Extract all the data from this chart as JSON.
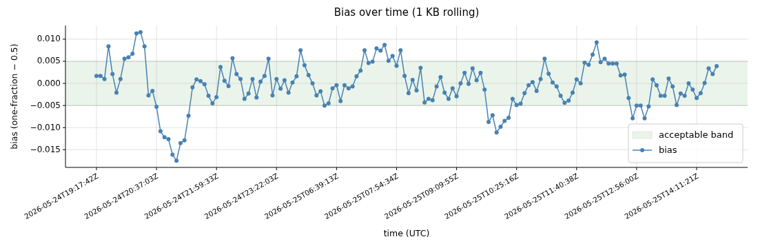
{
  "chart_data": {
    "type": "line",
    "title": "Bias over time (1 KB rolling)",
    "xlabel": "time (UTC)",
    "ylabel": "bias (one-fraction − 0.5)",
    "categories": [
      "2026-05-24T19:17:42Z",
      null,
      null,
      null,
      null,
      null,
      null,
      null,
      null,
      null,
      null,
      null,
      null,
      null,
      null,
      "2026-05-24T20:37:03Z",
      null,
      null,
      null,
      null,
      null,
      null,
      null,
      null,
      null,
      null,
      null,
      null,
      null,
      null,
      "2026-05-24T21:59:33Z",
      null,
      null,
      null,
      null,
      null,
      null,
      null,
      null,
      null,
      null,
      null,
      null,
      null,
      null,
      "2026-05-24T23:22:03Z",
      null,
      null,
      null,
      null,
      null,
      null,
      null,
      null,
      null,
      null,
      null,
      null,
      null,
      null,
      "2026-05-25T06:39:13Z",
      null,
      null,
      null,
      null,
      null,
      null,
      null,
      null,
      null,
      null,
      null,
      null,
      null,
      null,
      "2026-05-25T07:54:34Z",
      null,
      null,
      null,
      null,
      null,
      null,
      null,
      null,
      null,
      null,
      null,
      null,
      null,
      null,
      "2026-05-25T09:09:55Z",
      null,
      null,
      null,
      null,
      null,
      null,
      null,
      null,
      null,
      null,
      null,
      null,
      null,
      null,
      "2026-05-25T10:25:16Z",
      null,
      null,
      null,
      null,
      null,
      null,
      null,
      null,
      null,
      null,
      null,
      null,
      null,
      null,
      "2026-05-25T11:40:38Z",
      null,
      null,
      null,
      null,
      null,
      null,
      null,
      null,
      null,
      null,
      null,
      null,
      null,
      null,
      "2026-05-25T12:56:00Z",
      null,
      null,
      null,
      null,
      null,
      null,
      null,
      null,
      null,
      null,
      null,
      null,
      null,
      null,
      "2026-05-25T14:11:21Z",
      null,
      null,
      null,
      null,
      null
    ],
    "series": [
      {
        "name": "bias",
        "color": "#4682b4",
        "values": [
          0.0017,
          0.0017,
          0.001,
          0.0084,
          0.0021,
          -0.0021,
          0.001,
          0.0056,
          0.0059,
          0.0067,
          0.0113,
          0.0116,
          0.0084,
          -0.0027,
          -0.0017,
          -0.0053,
          -0.0108,
          -0.0122,
          -0.0126,
          -0.0161,
          -0.0175,
          -0.0135,
          -0.0129,
          -0.0073,
          -0.0009,
          0.0009,
          0.0005,
          -0.0002,
          -0.0028,
          -0.0045,
          -0.0031,
          0.0037,
          0.0006,
          -0.0006,
          0.0057,
          0.0021,
          0.001,
          -0.0035,
          -0.0023,
          0.001,
          -0.0032,
          0.0004,
          0.0017,
          0.0056,
          -0.0027,
          0.001,
          -0.0012,
          0.0007,
          -0.0021,
          0.0002,
          0.0016,
          0.0075,
          0.0041,
          0.0019,
          0.0,
          -0.0027,
          -0.0018,
          -0.005,
          -0.0045,
          -0.0011,
          -0.0004,
          -0.004,
          -0.0004,
          -0.0011,
          -0.0007,
          0.0016,
          0.0029,
          0.0075,
          0.0046,
          0.0049,
          0.0079,
          0.0074,
          0.0087,
          0.0051,
          0.0062,
          0.004,
          0.0075,
          0.0017,
          -0.0022,
          0.0008,
          -0.0016,
          0.0035,
          -0.0043,
          -0.0035,
          -0.0038,
          -0.0007,
          0.0014,
          -0.0021,
          -0.0035,
          -0.0011,
          -0.0029,
          0.0,
          0.0024,
          -0.0001,
          0.0034,
          0.0007,
          0.0024,
          -0.0014,
          -0.0087,
          -0.0072,
          -0.0111,
          -0.0098,
          -0.0085,
          -0.0078,
          -0.0035,
          -0.0049,
          -0.0046,
          -0.0022,
          -0.0004,
          0.0003,
          -0.0017,
          0.001,
          0.0056,
          0.0022,
          0.0002,
          -0.0007,
          -0.0028,
          -0.0044,
          -0.0039,
          -0.0021,
          0.0009,
          0.0,
          0.0047,
          0.0042,
          0.0065,
          0.0093,
          0.0048,
          0.0056,
          0.0045,
          0.0045,
          0.0045,
          0.0018,
          0.002,
          -0.0033,
          -0.0079,
          -0.005,
          -0.005,
          -0.0079,
          -0.0052,
          0.0009,
          -0.0004,
          -0.0028,
          -0.0028,
          0.0011,
          -0.0007,
          -0.0049,
          -0.0023,
          -0.0028,
          0.0,
          -0.0014,
          -0.0033,
          -0.0022,
          0.0001,
          0.0034,
          0.0021,
          0.0039
        ]
      }
    ],
    "ylim": [
      -0.019,
      0.0131
    ],
    "yticks": [
      {
        "value": -0.015,
        "label": "−0.015"
      },
      {
        "value": -0.01,
        "label": "−0.010"
      },
      {
        "value": -0.005,
        "label": "−0.005"
      },
      {
        "value": 0,
        "label": "0.000"
      },
      {
        "value": 0.005,
        "label": "0.005"
      },
      {
        "value": 0.01,
        "label": "0.010"
      }
    ],
    "bands": [
      {
        "axis": "y",
        "from": -0.005,
        "to": 0.005,
        "label": "acceptable band",
        "color": "#eaf4ea"
      }
    ],
    "grid": true,
    "legend": "bottom right",
    "marker": "circle",
    "line_style": "solid"
  }
}
